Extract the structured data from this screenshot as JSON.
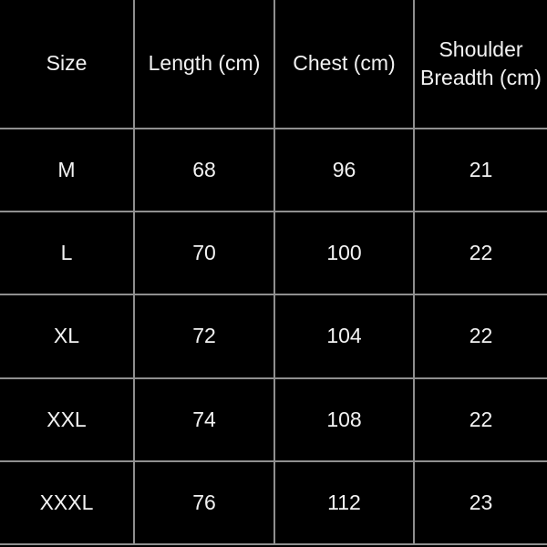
{
  "chart_data": {
    "type": "table",
    "title": "",
    "columns": [
      "Size",
      "Length (cm)",
      "Chest (cm)",
      "Shoulder Breadth (cm)"
    ],
    "rows": [
      [
        "M",
        "68",
        "96",
        "21"
      ],
      [
        "L",
        "70",
        "100",
        "22"
      ],
      [
        "XL",
        "72",
        "104",
        "22"
      ],
      [
        "XXL",
        "74",
        "108",
        "22"
      ],
      [
        "XXXL",
        "76",
        "112",
        "23"
      ]
    ],
    "layout": {
      "grid": "on",
      "header_row": true,
      "text_align": "center"
    }
  },
  "colors": {
    "background": "#000000",
    "grid_line": "#8f8f8f",
    "text": "#f2f2f2"
  }
}
